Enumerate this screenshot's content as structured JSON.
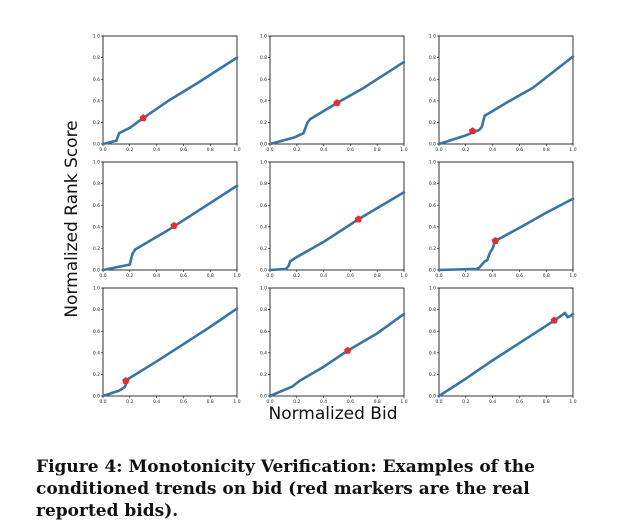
{
  "figure": {
    "ylabel": "Normalized Rank Score",
    "xlabel": "Normalized Bid",
    "caption": "Figure 4: Monotonicity Verification: Examples of the conditioned trends on bid (red markers are the real reported bids)."
  },
  "colors": {
    "line": "#3874a6",
    "marker": "#e03030",
    "axis": "#000000"
  },
  "chart_data": [
    {
      "type": "line",
      "xlim": [
        0,
        1
      ],
      "ylim": [
        0,
        1
      ],
      "x_ticks": [
        "0.0",
        "0.2",
        "0.4",
        "0.6",
        "0.8",
        "1.0"
      ],
      "y_ticks": [
        "0.0",
        "0.2",
        "0.4",
        "0.6",
        "0.8",
        "1.0"
      ],
      "x": [
        0,
        0.1,
        0.12,
        0.2,
        0.3,
        0.5,
        0.7,
        1.0
      ],
      "y": [
        0,
        0.03,
        0.1,
        0.15,
        0.24,
        0.41,
        0.56,
        0.8
      ],
      "marker": {
        "x": 0.3,
        "y": 0.24
      }
    },
    {
      "type": "line",
      "xlim": [
        0,
        1
      ],
      "ylim": [
        0,
        1
      ],
      "x_ticks": [
        "0.0",
        "0.2",
        "0.4",
        "0.6",
        "0.8",
        "1.0"
      ],
      "y_ticks": [
        "0.0",
        "0.2",
        "0.4",
        "0.6",
        "0.8",
        "1.0"
      ],
      "x": [
        0,
        0.18,
        0.25,
        0.28,
        0.3,
        0.5,
        0.7,
        1.0
      ],
      "y": [
        0,
        0.06,
        0.1,
        0.2,
        0.23,
        0.38,
        0.52,
        0.76
      ],
      "marker": {
        "x": 0.5,
        "y": 0.38
      }
    },
    {
      "type": "line",
      "xlim": [
        0,
        1
      ],
      "ylim": [
        0,
        1
      ],
      "x_ticks": [
        "0.0",
        "0.2",
        "0.4",
        "0.6",
        "0.8",
        "1.0"
      ],
      "y_ticks": [
        "0.0",
        "0.2",
        "0.4",
        "0.6",
        "0.8",
        "1.0"
      ],
      "x": [
        0,
        0.05,
        0.2,
        0.3,
        0.32,
        0.34,
        0.5,
        0.7,
        1.0
      ],
      "y": [
        0,
        0.02,
        0.08,
        0.13,
        0.16,
        0.26,
        0.38,
        0.52,
        0.81
      ],
      "marker": {
        "x": 0.25,
        "y": 0.12
      }
    },
    {
      "type": "line",
      "xlim": [
        0,
        1
      ],
      "ylim": [
        0,
        1
      ],
      "x_ticks": [
        "0.0",
        "0.2",
        "0.4",
        "0.6",
        "0.8",
        "1.0"
      ],
      "y_ticks": [
        "0.0",
        "0.2",
        "0.4",
        "0.6",
        "0.8",
        "1.0"
      ],
      "x": [
        0,
        0.2,
        0.21,
        0.22,
        0.24,
        0.5,
        0.7,
        1.0
      ],
      "y": [
        0,
        0.05,
        0.1,
        0.15,
        0.19,
        0.38,
        0.54,
        0.78
      ],
      "marker": {
        "x": 0.53,
        "y": 0.41
      }
    },
    {
      "type": "line",
      "xlim": [
        0,
        1
      ],
      "ylim": [
        0,
        1
      ],
      "x_ticks": [
        "0.0",
        "0.2",
        "0.4",
        "0.6",
        "0.8",
        "1.0"
      ],
      "y_ticks": [
        "0.0",
        "0.2",
        "0.4",
        "0.6",
        "0.8",
        "1.0"
      ],
      "x": [
        0,
        0.12,
        0.14,
        0.15,
        0.2,
        0.4,
        0.66,
        1.0
      ],
      "y": [
        0,
        0.01,
        0.04,
        0.08,
        0.12,
        0.26,
        0.47,
        0.72
      ],
      "marker": {
        "x": 0.66,
        "y": 0.47
      }
    },
    {
      "type": "line",
      "xlim": [
        0,
        1
      ],
      "ylim": [
        0,
        1
      ],
      "x_ticks": [
        "0.0",
        "0.2",
        "0.4",
        "0.6",
        "0.8",
        "1.0"
      ],
      "y_ticks": [
        "0.0",
        "0.2",
        "0.4",
        "0.6",
        "0.8",
        "1.0"
      ],
      "x": [
        0,
        0.28,
        0.3,
        0.34,
        0.36,
        0.38,
        0.4,
        0.42,
        0.6,
        0.8,
        1.0
      ],
      "y": [
        0,
        0.01,
        0.02,
        0.08,
        0.09,
        0.16,
        0.2,
        0.27,
        0.39,
        0.53,
        0.66
      ],
      "marker": {
        "x": 0.42,
        "y": 0.27
      }
    },
    {
      "type": "line",
      "xlim": [
        0,
        1
      ],
      "ylim": [
        0,
        1
      ],
      "x_ticks": [
        "0.0",
        "0.2",
        "0.4",
        "0.6",
        "0.8",
        "1.0"
      ],
      "y_ticks": [
        "0.0",
        "0.2",
        "0.4",
        "0.6",
        "0.8",
        "1.0"
      ],
      "x": [
        0,
        0.12,
        0.16,
        0.18,
        0.19,
        0.4,
        0.6,
        0.8,
        1.0
      ],
      "y": [
        0,
        0.05,
        0.08,
        0.13,
        0.16,
        0.32,
        0.48,
        0.64,
        0.81
      ],
      "marker": {
        "x": 0.17,
        "y": 0.14
      }
    },
    {
      "type": "line",
      "xlim": [
        0,
        1
      ],
      "ylim": [
        0,
        1
      ],
      "x_ticks": [
        "0.0",
        "0.2",
        "0.4",
        "0.6",
        "0.8",
        "1.0"
      ],
      "y_ticks": [
        "0.0",
        "0.2",
        "0.4",
        "0.6",
        "0.8",
        "1.0"
      ],
      "x": [
        0,
        0.17,
        0.2,
        0.22,
        0.4,
        0.58,
        0.8,
        1.0
      ],
      "y": [
        0,
        0.09,
        0.12,
        0.14,
        0.27,
        0.42,
        0.58,
        0.76
      ],
      "marker": {
        "x": 0.58,
        "y": 0.42
      }
    },
    {
      "type": "line",
      "xlim": [
        0,
        1
      ],
      "ylim": [
        0,
        1
      ],
      "x_ticks": [
        "0.0",
        "0.2",
        "0.4",
        "0.6",
        "0.8",
        "1.0"
      ],
      "y_ticks": [
        "0.0",
        "0.2",
        "0.4",
        "0.6",
        "0.8",
        "1.0"
      ],
      "x": [
        0,
        0.2,
        0.4,
        0.6,
        0.8,
        0.86,
        0.92,
        0.94,
        0.96,
        0.98,
        1.0
      ],
      "y": [
        0,
        0.16,
        0.33,
        0.49,
        0.65,
        0.7,
        0.75,
        0.77,
        0.73,
        0.74,
        0.76
      ],
      "marker": {
        "x": 0.86,
        "y": 0.7
      }
    }
  ]
}
